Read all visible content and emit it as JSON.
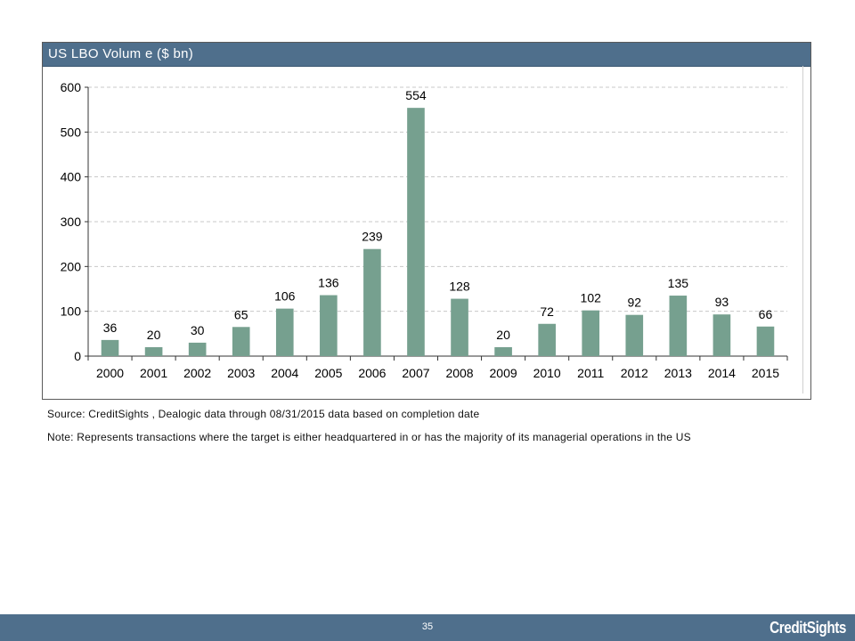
{
  "chart_title": "US LBO Volum e  ($ bn)",
  "source": "Source: CreditSights , Dealogic  data through 08/31/2015    data based on completion date",
  "note": "Note: Represents transactions where the target is either headquartered in or has the majority of its managerial operations in the US",
  "page_number": "35",
  "logo_text": "CreditSights",
  "colors": {
    "bar": "#76a08f",
    "header": "#4f6f8c",
    "grid": "#c8c8c8"
  },
  "chart_data": {
    "type": "bar",
    "title": "US LBO Volum e  ($ bn)",
    "categories": [
      "2000",
      "2001",
      "2002",
      "2003",
      "2004",
      "2005",
      "2006",
      "2007",
      "2008",
      "2009",
      "2010",
      "2011",
      "2012",
      "2013",
      "2014",
      "2015"
    ],
    "values": [
      36,
      20,
      30,
      65,
      106,
      136,
      239,
      554,
      128,
      20,
      72,
      102,
      92,
      135,
      93,
      66
    ],
    "data_labels": [
      "36",
      "20",
      "30",
      "65",
      "106",
      "136",
      "239",
      "554",
      "128",
      "20",
      "72",
      "102",
      "92",
      "135",
      "93",
      "66"
    ],
    "ylim": [
      0,
      600
    ],
    "yticks": [
      0,
      100,
      200,
      300,
      400,
      500,
      600
    ],
    "xlabel": "",
    "ylabel": "",
    "grid": true,
    "legend": "none"
  }
}
